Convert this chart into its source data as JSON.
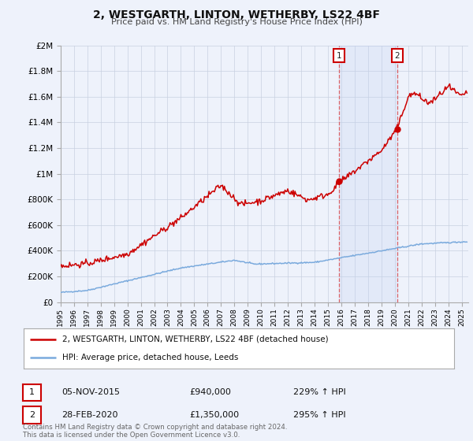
{
  "title": "2, WESTGARTH, LINTON, WETHERBY, LS22 4BF",
  "subtitle": "Price paid vs. HM Land Registry's House Price Index (HPI)",
  "ylim": [
    0,
    2000000
  ],
  "yticks": [
    0,
    200000,
    400000,
    600000,
    800000,
    1000000,
    1200000,
    1400000,
    1600000,
    1800000,
    2000000
  ],
  "ytick_labels": [
    "£0",
    "£200K",
    "£400K",
    "£600K",
    "£800K",
    "£1M",
    "£1.2M",
    "£1.4M",
    "£1.6M",
    "£1.8M",
    "£2M"
  ],
  "xlim_start": 1995.0,
  "xlim_end": 2025.5,
  "hpi_color": "#7aaadd",
  "price_color": "#cc0000",
  "background_color": "#eef2fb",
  "sale1_year": 2015.85,
  "sale1_price": 940000,
  "sale1_label": "1",
  "sale1_date": "05-NOV-2015",
  "sale1_pct": "229%",
  "sale2_year": 2020.17,
  "sale2_price": 1350000,
  "sale2_label": "2",
  "sale2_date": "28-FEB-2020",
  "sale2_pct": "295%",
  "legend_line1": "2, WESTGARTH, LINTON, WETHERBY, LS22 4BF (detached house)",
  "legend_line2": "HPI: Average price, detached house, Leeds",
  "footer1": "Contains HM Land Registry data © Crown copyright and database right 2024.",
  "footer2": "This data is licensed under the Open Government Licence v3.0."
}
